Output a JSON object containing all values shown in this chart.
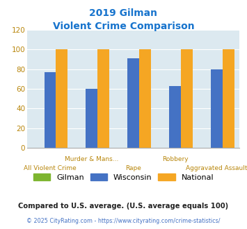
{
  "title_line1": "2019 Gilman",
  "title_line2": "Violent Crime Comparison",
  "title_color": "#1874cd",
  "categories": [
    "All Violent Crime",
    "Murder & Mans...",
    "Rape",
    "Robbery",
    "Aggravated Assault"
  ],
  "gilman_values": [
    0,
    0,
    0,
    0,
    0
  ],
  "wisconsin_values": [
    77,
    60,
    91,
    63,
    80
  ],
  "national_values": [
    100,
    100,
    100,
    100,
    100
  ],
  "gilman_color": "#7db52f",
  "wisconsin_color": "#4472c4",
  "national_color": "#f5a623",
  "bg_color": "#dce9f0",
  "ylim": [
    0,
    120
  ],
  "yticks": [
    0,
    20,
    40,
    60,
    80,
    100,
    120
  ],
  "legend_labels": [
    "Gilman",
    "Wisconsin",
    "National"
  ],
  "footnote1": "Compared to U.S. average. (U.S. average equals 100)",
  "footnote2": "© 2025 CityRating.com - https://www.cityrating.com/crime-statistics/",
  "footnote1_color": "#222222",
  "footnote2_color": "#4472c4",
  "xlabel_color": "#b8860b",
  "tick_color": "#b8860b",
  "row1_cats": [
    1,
    3
  ],
  "row2_cats": [
    0,
    2,
    4
  ],
  "row1_labels": [
    "Murder & Mans...",
    "Robbery"
  ],
  "row2_labels": [
    "All Violent Crime",
    "Rape",
    "Aggravated Assault"
  ]
}
